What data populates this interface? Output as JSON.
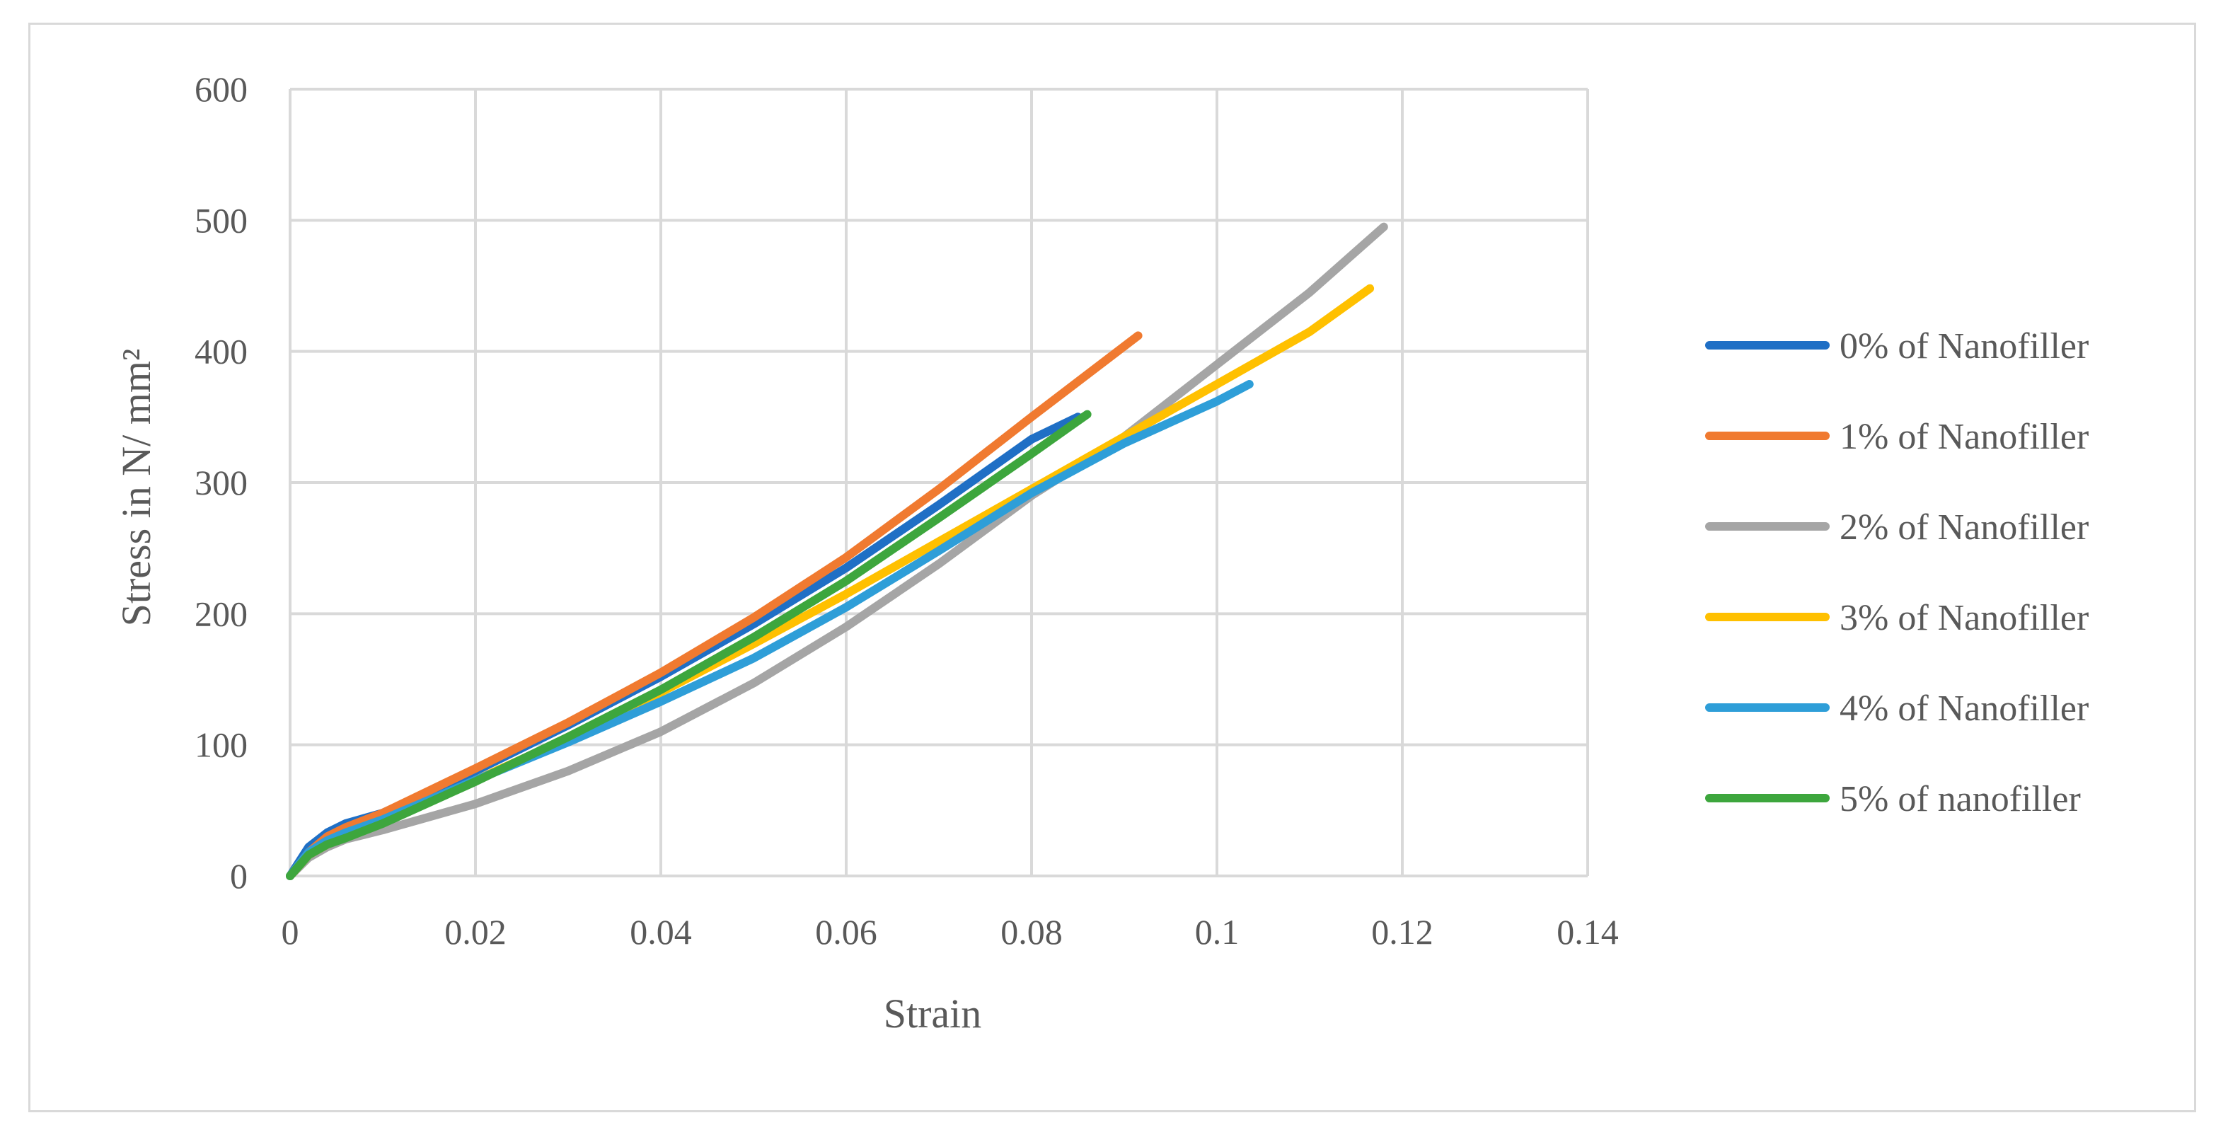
{
  "chart_data": {
    "type": "line",
    "title": "",
    "xlabel": "Strain",
    "ylabel": "Stress in N/ mm²",
    "xlim": [
      0,
      0.14
    ],
    "ylim": [
      0,
      600
    ],
    "x_ticks": [
      0,
      0.02,
      0.04,
      0.06,
      0.08,
      0.1,
      0.12,
      0.14
    ],
    "x_tick_labels": [
      "0",
      "0.02",
      "0.04",
      "0.06",
      "0.08",
      "0.1",
      "0.12",
      "0.14"
    ],
    "y_ticks": [
      0,
      100,
      200,
      300,
      400,
      500,
      600
    ],
    "y_tick_labels": [
      "0",
      "100",
      "200",
      "300",
      "400",
      "500",
      "600"
    ],
    "grid": true,
    "legend_position": "right",
    "series": [
      {
        "name": "0% of Nanofiller",
        "color": "#1f6fc5",
        "points": [
          [
            0,
            0
          ],
          [
            0.002,
            22
          ],
          [
            0.004,
            33
          ],
          [
            0.006,
            40
          ],
          [
            0.01,
            48
          ],
          [
            0.02,
            80
          ],
          [
            0.03,
            115
          ],
          [
            0.04,
            152
          ],
          [
            0.05,
            192
          ],
          [
            0.06,
            235
          ],
          [
            0.07,
            283
          ],
          [
            0.08,
            333
          ],
          [
            0.085,
            350
          ]
        ]
      },
      {
        "name": "1% of Nanofiller",
        "color": "#f07a30",
        "points": [
          [
            0,
            0
          ],
          [
            0.002,
            18
          ],
          [
            0.004,
            30
          ],
          [
            0.006,
            37
          ],
          [
            0.01,
            48
          ],
          [
            0.02,
            82
          ],
          [
            0.03,
            117
          ],
          [
            0.04,
            155
          ],
          [
            0.05,
            197
          ],
          [
            0.06,
            243
          ],
          [
            0.07,
            295
          ],
          [
            0.08,
            350
          ],
          [
            0.0915,
            412
          ]
        ]
      },
      {
        "name": "2% of Nanofiller",
        "color": "#a5a5a5",
        "points": [
          [
            0,
            0
          ],
          [
            0.002,
            14
          ],
          [
            0.004,
            22
          ],
          [
            0.006,
            28
          ],
          [
            0.01,
            35
          ],
          [
            0.02,
            55
          ],
          [
            0.03,
            80
          ],
          [
            0.04,
            110
          ],
          [
            0.05,
            147
          ],
          [
            0.06,
            190
          ],
          [
            0.07,
            238
          ],
          [
            0.08,
            290
          ],
          [
            0.09,
            335
          ],
          [
            0.1,
            390
          ],
          [
            0.11,
            445
          ],
          [
            0.118,
            495
          ]
        ]
      },
      {
        "name": "3% of Nanofiller",
        "color": "#ffc000",
        "points": [
          [
            0,
            0
          ],
          [
            0.002,
            16
          ],
          [
            0.004,
            24
          ],
          [
            0.006,
            30
          ],
          [
            0.01,
            42
          ],
          [
            0.02,
            73
          ],
          [
            0.03,
            105
          ],
          [
            0.04,
            140
          ],
          [
            0.05,
            177
          ],
          [
            0.06,
            215
          ],
          [
            0.07,
            255
          ],
          [
            0.08,
            295
          ],
          [
            0.09,
            335
          ],
          [
            0.1,
            375
          ],
          [
            0.11,
            415
          ],
          [
            0.1165,
            448
          ]
        ]
      },
      {
        "name": "4% of Nanofiller",
        "color": "#2e9ed8",
        "points": [
          [
            0,
            0
          ],
          [
            0.002,
            18
          ],
          [
            0.004,
            27
          ],
          [
            0.006,
            33
          ],
          [
            0.01,
            43
          ],
          [
            0.02,
            73
          ],
          [
            0.03,
            102
          ],
          [
            0.04,
            133
          ],
          [
            0.05,
            166
          ],
          [
            0.06,
            205
          ],
          [
            0.07,
            248
          ],
          [
            0.08,
            292
          ],
          [
            0.09,
            330
          ],
          [
            0.1,
            362
          ],
          [
            0.1035,
            375
          ]
        ]
      },
      {
        "name": "5% of nanofiller",
        "color": "#3da63d",
        "points": [
          [
            0,
            0
          ],
          [
            0.002,
            16
          ],
          [
            0.004,
            24
          ],
          [
            0.006,
            29
          ],
          [
            0.01,
            40
          ],
          [
            0.02,
            72
          ],
          [
            0.03,
            106
          ],
          [
            0.04,
            142
          ],
          [
            0.05,
            182
          ],
          [
            0.06,
            225
          ],
          [
            0.07,
            273
          ],
          [
            0.08,
            322
          ],
          [
            0.086,
            352
          ]
        ]
      }
    ]
  }
}
